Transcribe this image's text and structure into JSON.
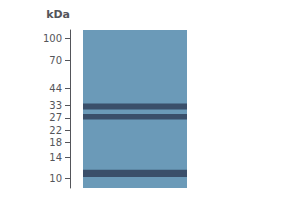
{
  "chart_data": {
    "type": "gel",
    "annotation": "kDa",
    "log": "y",
    "ylim": [
      8.5,
      115
    ],
    "yticks": [
      100,
      70,
      44,
      33,
      27,
      22,
      18,
      14,
      10
    ],
    "tick_labels": "y",
    "grid": false,
    "lane": {
      "color": "#6b9ab8"
    },
    "color": "#2a3550",
    "bands": [
      {
        "low": 31.0,
        "high": 34.2
      },
      {
        "low": 26.3,
        "high": 28.8
      },
      {
        "low": 10.2,
        "high": 11.5
      }
    ]
  }
}
